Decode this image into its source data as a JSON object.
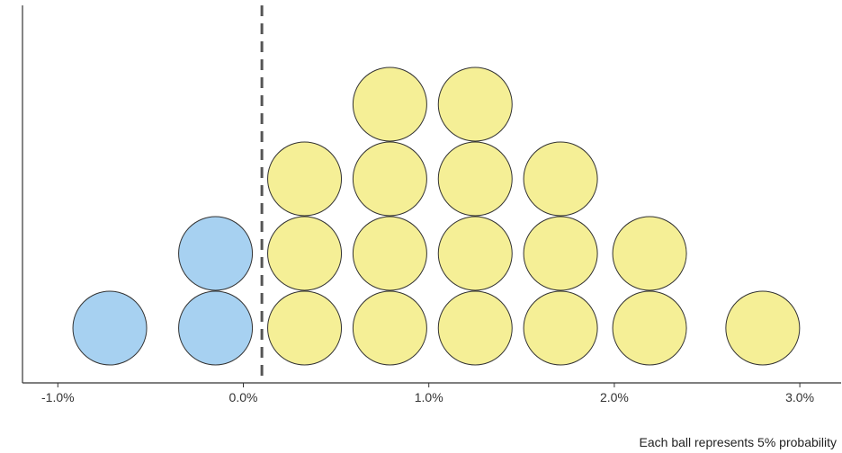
{
  "chart_data": {
    "type": "scatter",
    "subtype": "dotplot",
    "title": "",
    "xlabel": "",
    "ylabel": "",
    "xlim": [
      -1.3,
      3.2
    ],
    "ylim": [
      0,
      4.5
    ],
    "grid": false,
    "threshold": {
      "x": 0.1,
      "style": "dashed",
      "color": "#555555"
    },
    "xticks": [
      {
        "value": -1.0,
        "label": "-1.0%"
      },
      {
        "value": 0.0,
        "label": "0.0%"
      },
      {
        "value": 1.0,
        "label": "1.0%"
      },
      {
        "value": 2.0,
        "label": "2.0%"
      },
      {
        "value": 3.0,
        "label": "3.0%"
      }
    ],
    "colors": {
      "below": "#a7d1f1",
      "above": "#f5ef96",
      "stroke": "#333333",
      "axis": "#333333"
    },
    "balls": [
      {
        "x": -0.72,
        "stack": 1,
        "group": "below"
      },
      {
        "x": -0.15,
        "stack": 1,
        "group": "below"
      },
      {
        "x": -0.15,
        "stack": 2,
        "group": "below"
      },
      {
        "x": 0.33,
        "stack": 1,
        "group": "above"
      },
      {
        "x": 0.33,
        "stack": 2,
        "group": "above"
      },
      {
        "x": 0.33,
        "stack": 3,
        "group": "above"
      },
      {
        "x": 0.79,
        "stack": 1,
        "group": "above"
      },
      {
        "x": 0.79,
        "stack": 2,
        "group": "above"
      },
      {
        "x": 0.79,
        "stack": 3,
        "group": "above"
      },
      {
        "x": 0.79,
        "stack": 4,
        "group": "above"
      },
      {
        "x": 1.25,
        "stack": 1,
        "group": "above"
      },
      {
        "x": 1.25,
        "stack": 2,
        "group": "above"
      },
      {
        "x": 1.25,
        "stack": 3,
        "group": "above"
      },
      {
        "x": 1.25,
        "stack": 4,
        "group": "above"
      },
      {
        "x": 1.71,
        "stack": 1,
        "group": "above"
      },
      {
        "x": 1.71,
        "stack": 2,
        "group": "above"
      },
      {
        "x": 1.71,
        "stack": 3,
        "group": "above"
      },
      {
        "x": 2.19,
        "stack": 1,
        "group": "above"
      },
      {
        "x": 2.19,
        "stack": 2,
        "group": "above"
      },
      {
        "x": 2.8,
        "stack": 1,
        "group": "above"
      }
    ]
  },
  "caption": "Each ball represents 5% probability"
}
